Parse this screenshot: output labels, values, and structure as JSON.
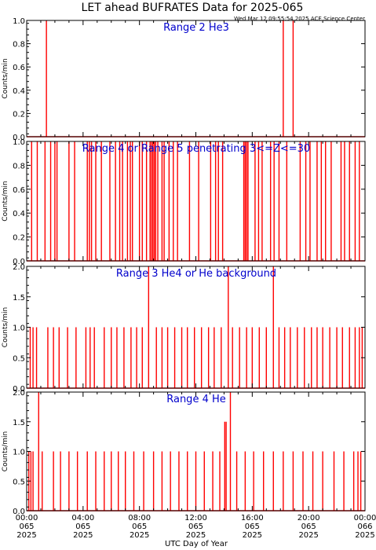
{
  "title": "LET ahead BUFRATES Data for 2025-065",
  "timestamp": "Wed Mar 12 09:55:54 2025 ACE Science Center",
  "xlabel": "UTC Day of Year",
  "colors": {
    "trace": "#ff0000",
    "panel_title": "#0000cc",
    "axes": "#000000"
  },
  "chart_data": [
    {
      "type": "line",
      "title": "Range 2 He3",
      "ylabel": "Counts/min",
      "xlim": [
        0,
        24
      ],
      "ylim": [
        0,
        1.0
      ],
      "yticks": [
        "0.0",
        "0.2",
        "0.4",
        "0.6",
        "0.8",
        "1.0"
      ],
      "x_unit": "hours UTC on 2025-065",
      "spike_value": 1.0,
      "spikes": [
        1.4,
        18.2,
        18.9
      ]
    },
    {
      "type": "line",
      "title": "Range 4 or Range 5 penetrating 3<=Z<=30",
      "ylabel": "Counts/min",
      "xlim": [
        0,
        24
      ],
      "ylim": [
        0,
        1.0
      ],
      "yticks": [
        "0.0",
        "0.2",
        "0.4",
        "0.6",
        "0.8",
        "1.0"
      ],
      "x_unit": "hours UTC on 2025-065",
      "spike_value": 1.0,
      "spikes": [
        0.35,
        0.75,
        1.3,
        1.7,
        2.0,
        2.15,
        3.0,
        3.4,
        4.3,
        4.45,
        4.6,
        4.9,
        5.3,
        5.9,
        6.3,
        6.6,
        6.8,
        7.15,
        7.35,
        7.5,
        8.0,
        8.2,
        8.5,
        8.75,
        8.85,
        8.95,
        9.05,
        9.15,
        9.3,
        9.6,
        9.75,
        10.1,
        10.4,
        10.7,
        11.55,
        12.2,
        13.05,
        13.4,
        13.6,
        13.9,
        15.4,
        15.5,
        15.6,
        15.7,
        16.2,
        16.45,
        16.7,
        17.3,
        17.55,
        17.9,
        18.45,
        19.4,
        19.8,
        20.1,
        20.6,
        20.9,
        21.2,
        21.6,
        22.3,
        22.55,
        22.9,
        23.3,
        23.6
      ]
    },
    {
      "type": "line",
      "title": "Range 3 He4 or He background",
      "ylabel": "Counts/min",
      "xlim": [
        0,
        24
      ],
      "ylim": [
        0,
        2.0
      ],
      "yticks": [
        "0.0",
        "0.5",
        "1.0",
        "1.5",
        "2.0"
      ],
      "x_unit": "hours UTC on 2025-065",
      "events": [
        {
          "x": 0.25,
          "y": 1
        },
        {
          "x": 0.45,
          "y": 1
        },
        {
          "x": 0.7,
          "y": 1
        },
        {
          "x": 1.5,
          "y": 1
        },
        {
          "x": 1.9,
          "y": 1
        },
        {
          "x": 2.3,
          "y": 1
        },
        {
          "x": 2.9,
          "y": 1
        },
        {
          "x": 3.5,
          "y": 1
        },
        {
          "x": 4.2,
          "y": 1
        },
        {
          "x": 4.5,
          "y": 1
        },
        {
          "x": 4.8,
          "y": 1
        },
        {
          "x": 5.5,
          "y": 1
        },
        {
          "x": 6.0,
          "y": 1
        },
        {
          "x": 6.4,
          "y": 1
        },
        {
          "x": 6.9,
          "y": 1
        },
        {
          "x": 7.4,
          "y": 1
        },
        {
          "x": 7.8,
          "y": 1
        },
        {
          "x": 8.2,
          "y": 1
        },
        {
          "x": 8.65,
          "y": 2
        },
        {
          "x": 9.2,
          "y": 1
        },
        {
          "x": 9.6,
          "y": 1
        },
        {
          "x": 10.0,
          "y": 1
        },
        {
          "x": 10.5,
          "y": 1
        },
        {
          "x": 11.0,
          "y": 1
        },
        {
          "x": 11.4,
          "y": 1
        },
        {
          "x": 11.9,
          "y": 1
        },
        {
          "x": 12.4,
          "y": 1
        },
        {
          "x": 12.9,
          "y": 1
        },
        {
          "x": 13.3,
          "y": 1
        },
        {
          "x": 13.8,
          "y": 1
        },
        {
          "x": 14.3,
          "y": 2
        },
        {
          "x": 14.6,
          "y": 1
        },
        {
          "x": 15.1,
          "y": 1
        },
        {
          "x": 15.6,
          "y": 1
        },
        {
          "x": 16.0,
          "y": 1
        },
        {
          "x": 16.5,
          "y": 1
        },
        {
          "x": 17.0,
          "y": 1
        },
        {
          "x": 17.5,
          "y": 2
        },
        {
          "x": 17.9,
          "y": 1
        },
        {
          "x": 18.3,
          "y": 1
        },
        {
          "x": 18.7,
          "y": 1
        },
        {
          "x": 19.2,
          "y": 1
        },
        {
          "x": 19.7,
          "y": 1
        },
        {
          "x": 20.2,
          "y": 1
        },
        {
          "x": 20.6,
          "y": 1
        },
        {
          "x": 21.0,
          "y": 1
        },
        {
          "x": 21.5,
          "y": 1
        },
        {
          "x": 22.0,
          "y": 1
        },
        {
          "x": 22.4,
          "y": 1
        },
        {
          "x": 22.9,
          "y": 1
        },
        {
          "x": 23.3,
          "y": 1
        },
        {
          "x": 23.6,
          "y": 1
        },
        {
          "x": 23.8,
          "y": 1
        }
      ]
    },
    {
      "type": "line",
      "title": "Range 4 He",
      "ylabel": "Counts/min",
      "xlim": [
        0,
        24
      ],
      "ylim": [
        0,
        2.0
      ],
      "yticks": [
        "0.0",
        "0.5",
        "1.0",
        "1.5",
        "2.0"
      ],
      "x_unit": "hours UTC on 2025-065",
      "events": [
        {
          "x": 0.15,
          "y": 1
        },
        {
          "x": 0.3,
          "y": 1
        },
        {
          "x": 0.45,
          "y": 1
        },
        {
          "x": 0.85,
          "y": 2
        },
        {
          "x": 1.1,
          "y": 1
        },
        {
          "x": 1.9,
          "y": 1
        },
        {
          "x": 2.4,
          "y": 1
        },
        {
          "x": 3.0,
          "y": 1
        },
        {
          "x": 3.6,
          "y": 1
        },
        {
          "x": 4.3,
          "y": 1
        },
        {
          "x": 4.9,
          "y": 1
        },
        {
          "x": 5.5,
          "y": 1
        },
        {
          "x": 6.0,
          "y": 1
        },
        {
          "x": 6.5,
          "y": 1
        },
        {
          "x": 7.0,
          "y": 1
        },
        {
          "x": 7.6,
          "y": 1
        },
        {
          "x": 8.3,
          "y": 1
        },
        {
          "x": 9.0,
          "y": 1
        },
        {
          "x": 9.6,
          "y": 1
        },
        {
          "x": 10.2,
          "y": 1
        },
        {
          "x": 10.8,
          "y": 1
        },
        {
          "x": 11.4,
          "y": 1
        },
        {
          "x": 12.0,
          "y": 1
        },
        {
          "x": 12.6,
          "y": 1
        },
        {
          "x": 13.2,
          "y": 1
        },
        {
          "x": 13.7,
          "y": 1
        },
        {
          "x": 14.05,
          "y": 1.5
        },
        {
          "x": 14.15,
          "y": 1.5
        },
        {
          "x": 14.45,
          "y": 2
        },
        {
          "x": 14.9,
          "y": 1
        },
        {
          "x": 15.5,
          "y": 1
        },
        {
          "x": 16.1,
          "y": 1
        },
        {
          "x": 16.8,
          "y": 1
        },
        {
          "x": 17.5,
          "y": 1
        },
        {
          "x": 18.2,
          "y": 1
        },
        {
          "x": 18.9,
          "y": 1
        },
        {
          "x": 19.6,
          "y": 1
        },
        {
          "x": 20.3,
          "y": 1
        },
        {
          "x": 21.0,
          "y": 1
        },
        {
          "x": 21.8,
          "y": 1
        },
        {
          "x": 22.5,
          "y": 1
        },
        {
          "x": 23.2,
          "y": 1
        },
        {
          "x": 23.5,
          "y": 1
        },
        {
          "x": 23.7,
          "y": 1
        }
      ]
    }
  ],
  "xticks": [
    {
      "hours": 0,
      "time": "00:00",
      "doy": "065",
      "year": "2025"
    },
    {
      "hours": 4,
      "time": "04:00",
      "doy": "065",
      "year": "2025"
    },
    {
      "hours": 8,
      "time": "08:00",
      "doy": "065",
      "year": "2025"
    },
    {
      "hours": 12,
      "time": "12:00",
      "doy": "065",
      "year": "2025"
    },
    {
      "hours": 16,
      "time": "16:00",
      "doy": "065",
      "year": "2025"
    },
    {
      "hours": 20,
      "time": "20:00",
      "doy": "065",
      "year": "2025"
    },
    {
      "hours": 24,
      "time": "00:00",
      "doy": "066",
      "year": "2025"
    }
  ]
}
